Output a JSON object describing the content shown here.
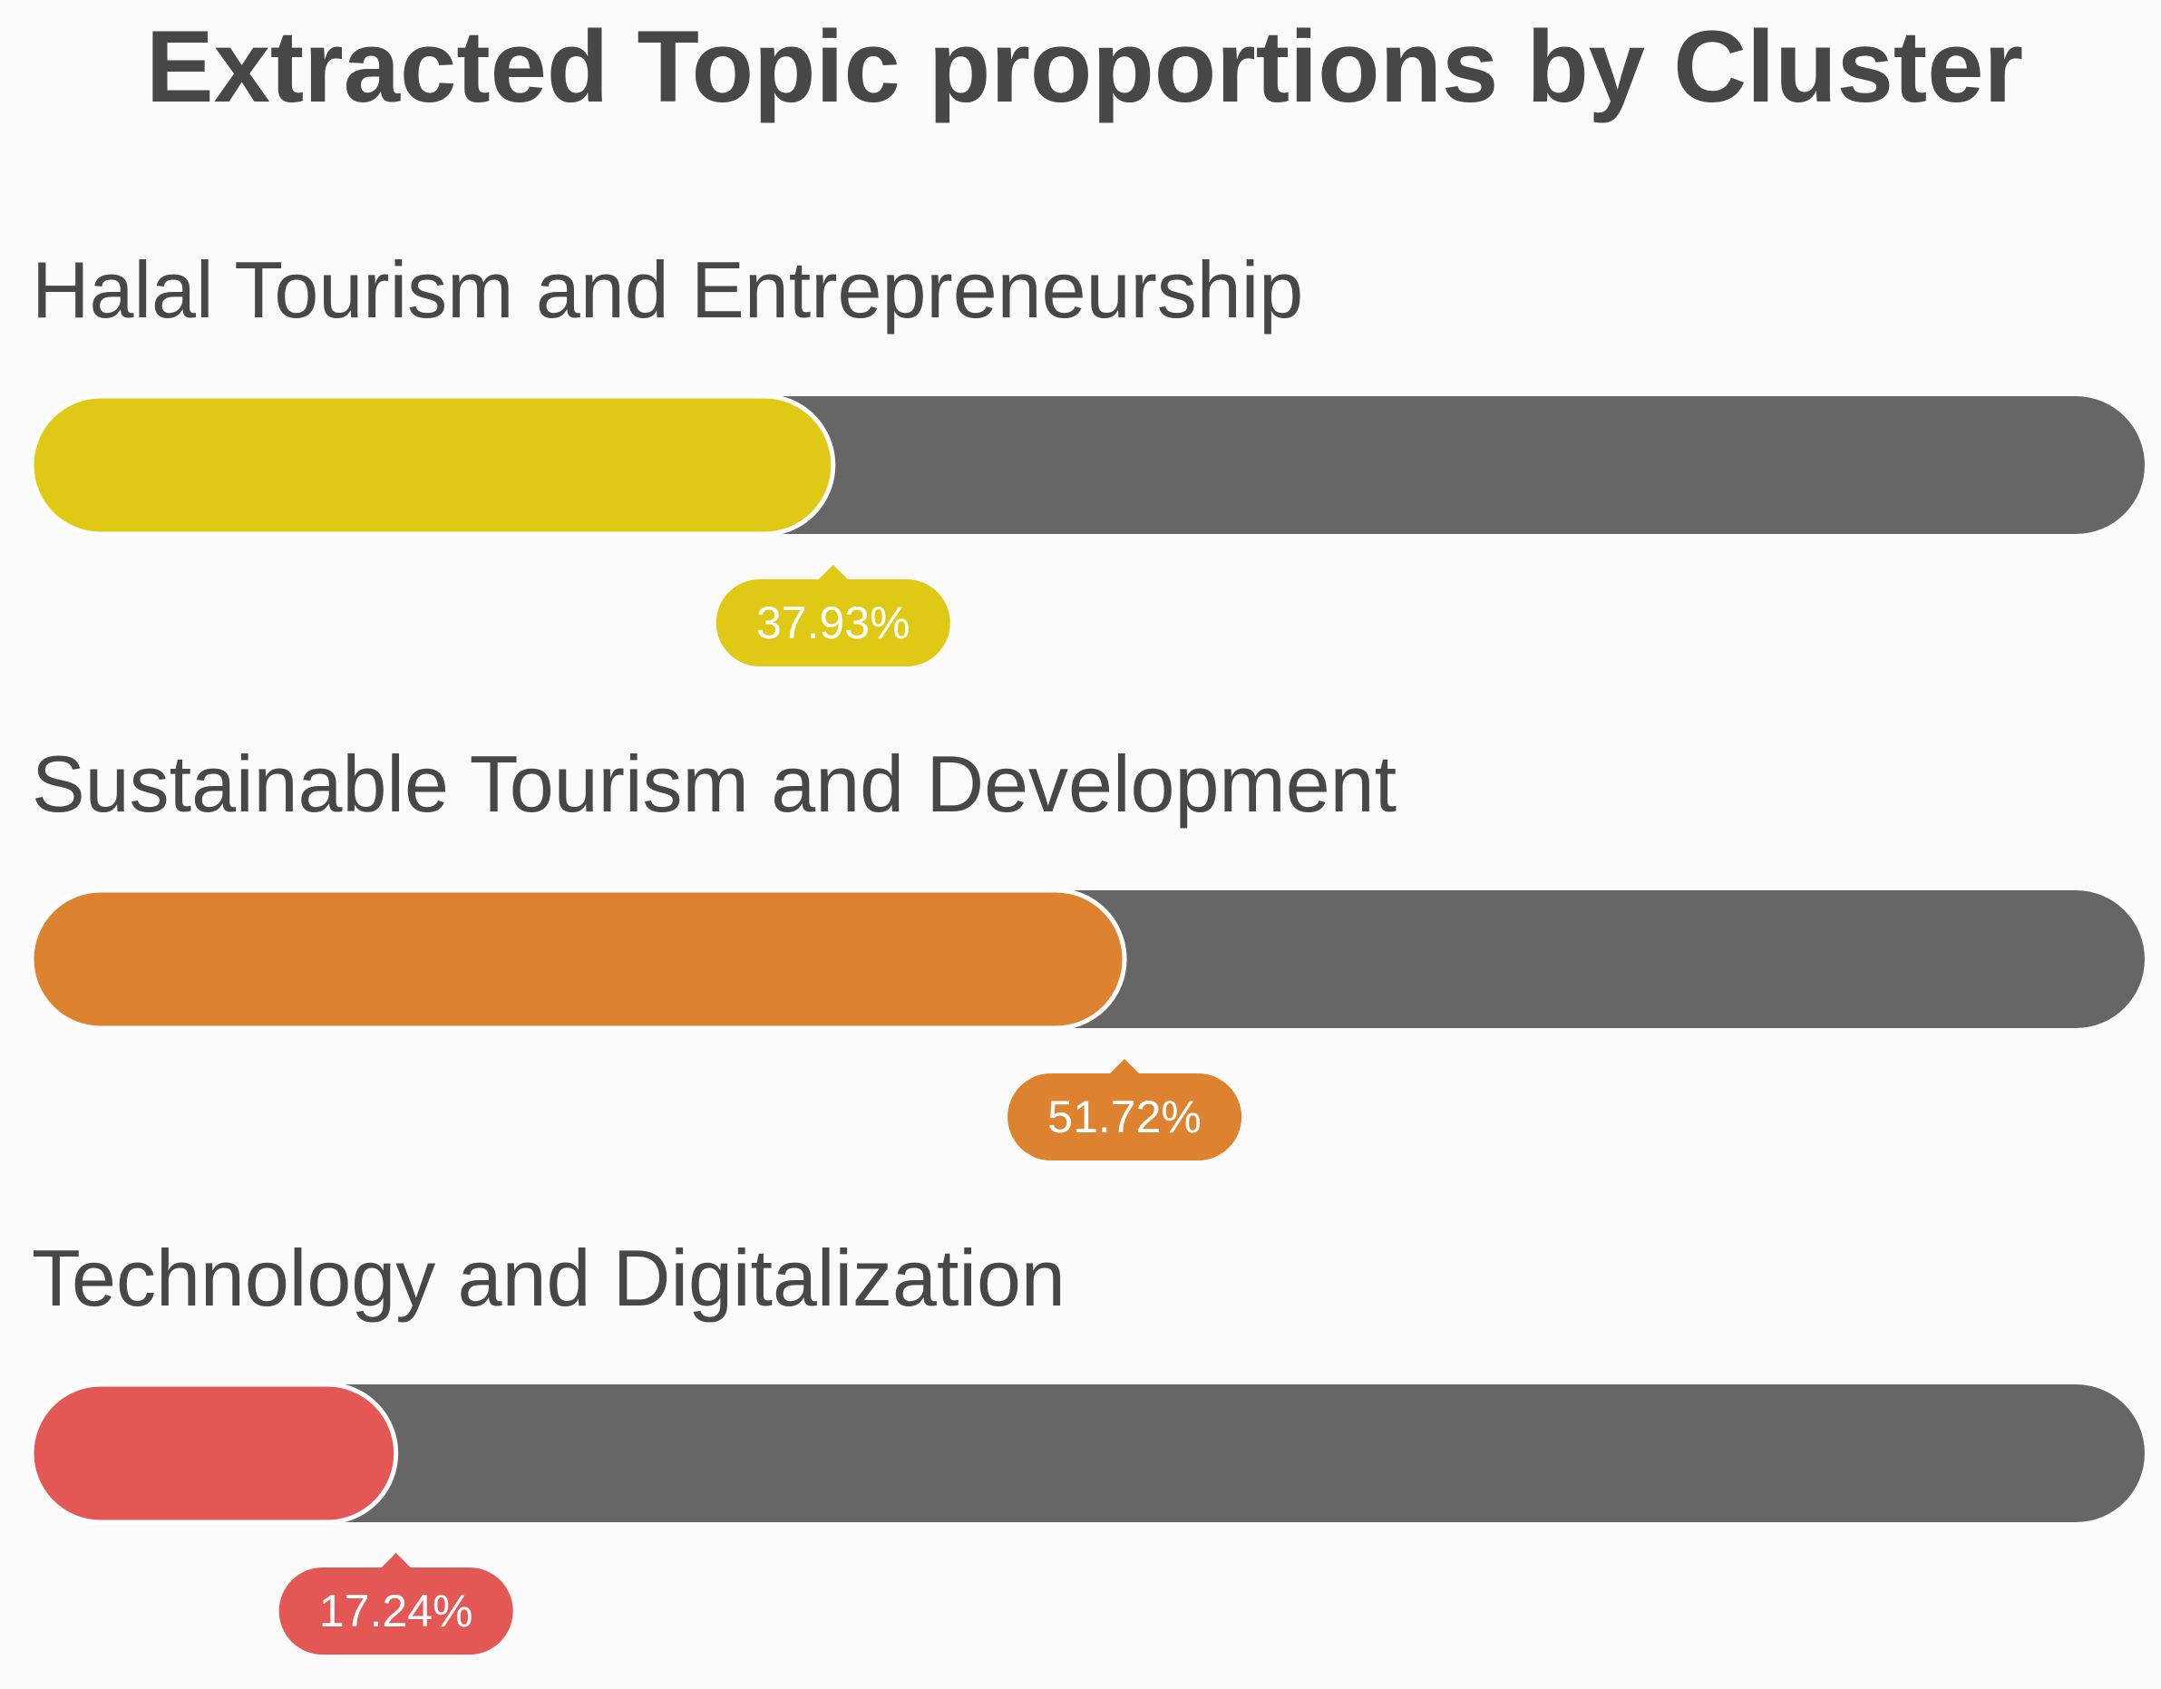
{
  "chart_data": {
    "type": "bar",
    "orientation": "horizontal",
    "title": "Extracted Topic proportions by Cluster",
    "categories": [
      "Halal Tourism and Entrepreneurship",
      "Sustainable Tourism and Development",
      "Technology and Digitalization"
    ],
    "values": [
      37.93,
      51.72,
      17.24
    ],
    "value_labels": [
      "37.93%",
      "51.72%",
      "17.24%"
    ],
    "colors": [
      "#dfc914",
      "#dd822f",
      "#e35755"
    ],
    "track_color": "#666666",
    "xlim": [
      0,
      100
    ],
    "xlabel": "",
    "ylabel": "",
    "grid": false,
    "legend": "none"
  }
}
